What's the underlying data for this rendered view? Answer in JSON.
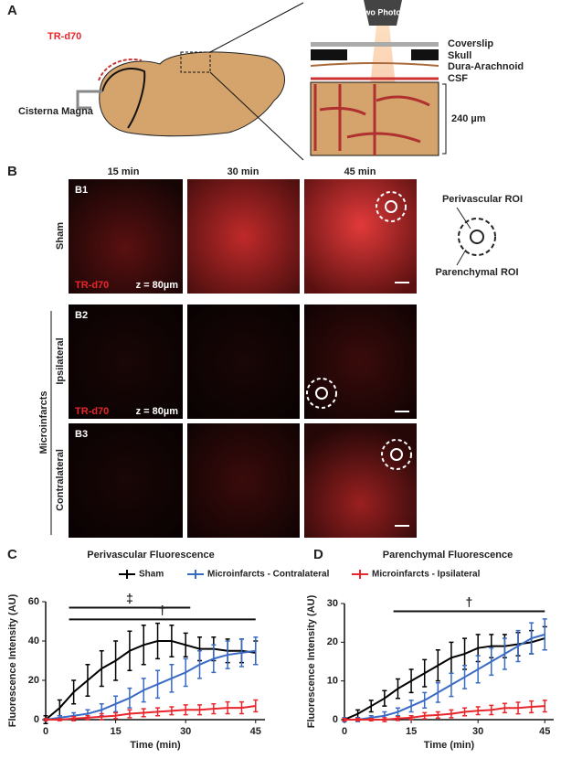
{
  "panel_a": {
    "label": "A",
    "tracer": "TR-d70",
    "injection_site": "Cisterna Magna",
    "microscope": "Two Photon",
    "layers": [
      "Coverslip",
      "Skull",
      "Dura-Arachnoid",
      "CSF"
    ],
    "depth": "240 µm"
  },
  "panel_b": {
    "label": "B",
    "timepoints": [
      "15 min",
      "30 min",
      "45 min"
    ],
    "group": "Microinfarcts",
    "rows": [
      {
        "label": "B1",
        "condition": "Sham",
        "tracer": "TR-d70",
        "depth": "z = 80µm"
      },
      {
        "label": "B2",
        "condition": "Ipsilateral",
        "tracer": "TR-d70",
        "depth": "z = 80µm"
      },
      {
        "label": "B3",
        "condition": "Contralateral"
      }
    ],
    "roi_legend": [
      "Perivascular ROI",
      "Parenchymal ROI"
    ]
  },
  "chart_data": [
    {
      "panel": "C",
      "type": "line",
      "title": "Perivascular Fluorescence",
      "xlabel": "Time (min)",
      "ylabel": "Fluorescence Intensity (AU)",
      "x": [
        0,
        3,
        6,
        9,
        12,
        15,
        18,
        21,
        24,
        27,
        30,
        33,
        36,
        39,
        42,
        45
      ],
      "xlim": [
        0,
        47
      ],
      "xticks": [
        0,
        15,
        30,
        45
      ],
      "ylim": [
        0,
        60
      ],
      "yticks": [
        0,
        20,
        40,
        60
      ],
      "legend": true,
      "series": [
        {
          "name": "Sham",
          "color": "#000000",
          "values": [
            0,
            6,
            14,
            20,
            26,
            30,
            35,
            38,
            40,
            40,
            38,
            36,
            36,
            35,
            35,
            34
          ],
          "errors": [
            2,
            4,
            6,
            8,
            9,
            10,
            10,
            10,
            9,
            8,
            6,
            6,
            6,
            6,
            6,
            6
          ]
        },
        {
          "name": "Microinfarcts - Contralateral",
          "color": "#3a6bc4",
          "values": [
            0,
            1,
            2,
            3,
            5,
            8,
            11,
            15,
            18,
            21,
            24,
            28,
            31,
            33,
            34,
            35
          ],
          "errors": [
            0.5,
            1,
            1.5,
            2,
            3,
            4,
            5,
            6,
            7,
            7,
            7,
            7,
            7,
            7,
            7,
            7
          ]
        },
        {
          "name": "Microinfarcts - Ipsilateral",
          "color": "#e8262b",
          "values": [
            0,
            0,
            0.5,
            1,
            1.5,
            2,
            3,
            3.5,
            4,
            4.5,
            5,
            5,
            5.5,
            6,
            6,
            7
          ],
          "errors": [
            0.5,
            0.5,
            1,
            1,
            1.5,
            1.5,
            2,
            2,
            2,
            2,
            2.5,
            2.5,
            2.5,
            3,
            3,
            3
          ]
        }
      ],
      "annotations": [
        {
          "text": "‡",
          "x": [
            5,
            31
          ],
          "y": 57
        },
        {
          "text": "†",
          "x": [
            5,
            45
          ],
          "y": 51
        }
      ]
    },
    {
      "panel": "D",
      "type": "line",
      "title": "Parenchymal Fluorescence",
      "xlabel": "Time (min)",
      "ylabel": "Fluorescence Intensity (AU)",
      "x": [
        0,
        3,
        6,
        9,
        12,
        15,
        18,
        21,
        24,
        27,
        30,
        33,
        36,
        39,
        42,
        45
      ],
      "xlim": [
        0,
        47
      ],
      "xticks": [
        0,
        15,
        30,
        45
      ],
      "ylim": [
        0,
        30
      ],
      "yticks": [
        0,
        10,
        20,
        30
      ],
      "legend": false,
      "series": [
        {
          "color": "#000000",
          "values": [
            0,
            1.5,
            3.5,
            5.5,
            8,
            10,
            12,
            14,
            16,
            17,
            18.5,
            19,
            19,
            19.5,
            20,
            21
          ],
          "errors": [
            0.5,
            1,
            1.5,
            2,
            2.5,
            3,
            3.5,
            4,
            4,
            4,
            3.5,
            3,
            3,
            3,
            3,
            3
          ]
        },
        {
          "color": "#3a6bc4",
          "values": [
            0,
            0,
            0.5,
            1,
            2,
            3.5,
            5,
            7,
            9,
            11,
            13,
            15,
            17,
            19,
            21,
            22
          ],
          "errors": [
            0.5,
            0.5,
            0.5,
            1,
            1,
            1.5,
            2,
            2.5,
            3,
            3,
            3.5,
            3.5,
            4,
            4,
            4,
            4
          ]
        },
        {
          "color": "#e8262b",
          "values": [
            0,
            0,
            0,
            0,
            0.3,
            0.5,
            1,
            1.2,
            1.5,
            2,
            2.3,
            2.5,
            3,
            3,
            3.3,
            3.5
          ],
          "errors": [
            0.3,
            0.3,
            0.3,
            0.5,
            0.5,
            0.5,
            0.8,
            0.8,
            1,
            1,
            1,
            1.2,
            1.2,
            1.5,
            1.5,
            1.5
          ]
        }
      ],
      "annotations": [
        {
          "text": "†",
          "x": [
            11,
            45
          ],
          "y": 28
        }
      ]
    }
  ]
}
